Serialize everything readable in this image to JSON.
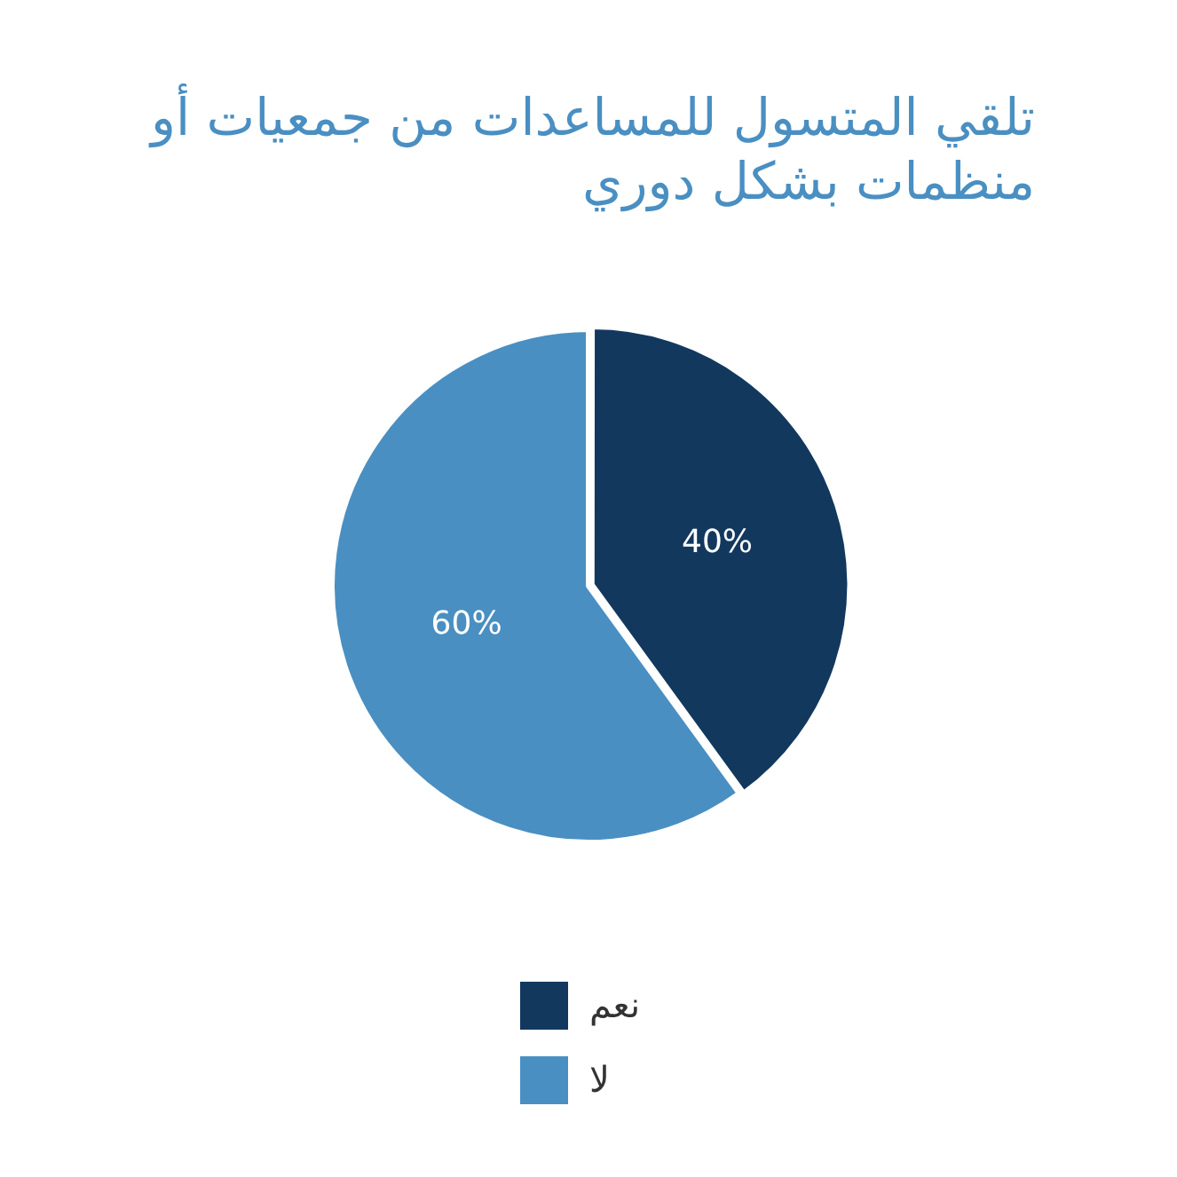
{
  "chart_data": {
    "type": "pie",
    "title": "تلقي المتسول للمساعدات من جمعيات أو منظمات بشكل دوري",
    "categories": [
      "نعم",
      "لا"
    ],
    "values": [
      40,
      60
    ],
    "colors": [
      "#12385e",
      "#4a8fc2"
    ],
    "value_labels": [
      "40%",
      "60%"
    ],
    "legend": "bottom"
  }
}
